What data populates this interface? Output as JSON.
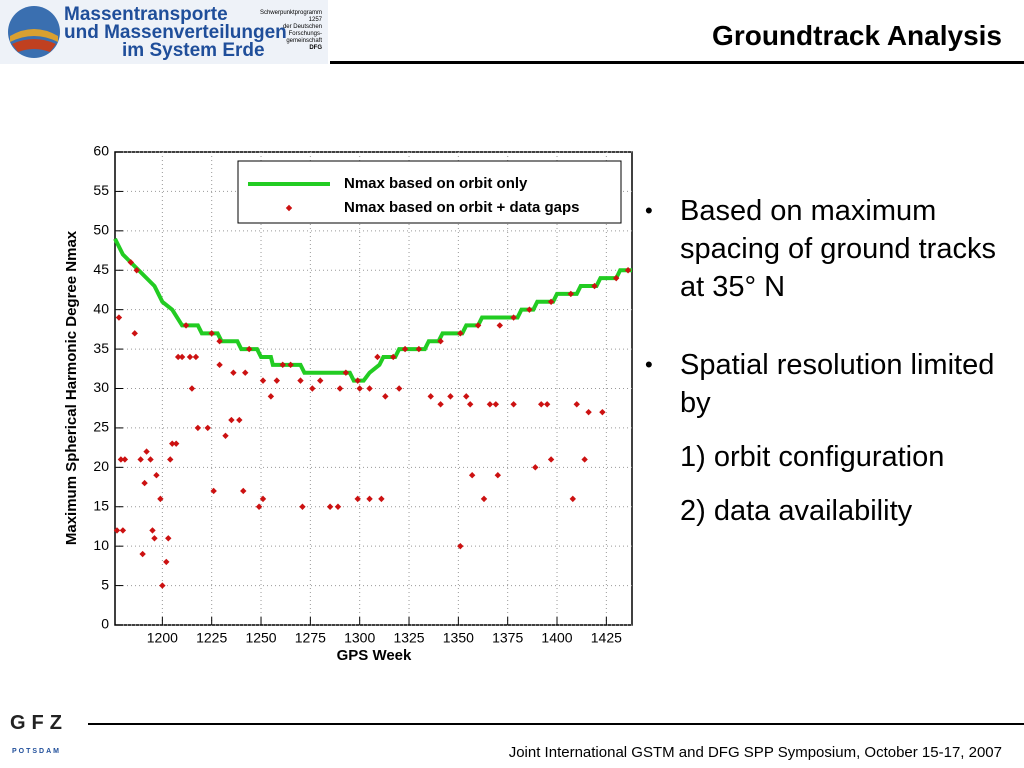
{
  "header": {
    "logo": [
      "Massentransporte",
      "und Massenverteilungen",
      "im System Erde"
    ],
    "logo_note": [
      "Schwerpunktprogramm 1257",
      "der Deutschen",
      "Forschungs-",
      "gemeinschaft",
      "DFG"
    ],
    "title": "Groundtrack Analysis"
  },
  "chart_data": {
    "type": "scatter",
    "x_label": "GPS Week",
    "y_label": "Maximum Spherical Harmonic Degree Nmax",
    "xlim": [
      1176,
      1438
    ],
    "ylim": [
      0,
      60
    ],
    "xticks": [
      1200,
      1225,
      1250,
      1275,
      1300,
      1325,
      1350,
      1375,
      1400,
      1425
    ],
    "yticks": [
      0,
      5,
      10,
      15,
      20,
      25,
      30,
      35,
      40,
      45,
      50,
      55,
      60
    ],
    "grid": true,
    "legend": "top-right",
    "series": [
      {
        "name": "Nmax based on orbit only",
        "color": "#22cc22",
        "mode": "line",
        "x": [
          1176,
          1180,
          1184,
          1188,
          1192,
          1196,
          1200,
          1205,
          1210,
          1218,
          1220,
          1228,
          1230,
          1238,
          1240,
          1248,
          1250,
          1255,
          1256,
          1270,
          1272,
          1295,
          1297,
          1302,
          1305,
          1310,
          1312,
          1318,
          1320,
          1333,
          1335,
          1340,
          1342,
          1352,
          1354,
          1360,
          1362,
          1370,
          1372,
          1380,
          1382,
          1388,
          1390,
          1398,
          1400,
          1410,
          1412,
          1420,
          1422,
          1430,
          1432,
          1438
        ],
        "values": [
          49,
          47,
          46,
          45,
          44,
          43,
          41,
          40,
          38,
          38,
          37,
          37,
          36,
          36,
          35,
          35,
          34,
          34,
          33,
          33,
          32,
          32,
          31,
          31,
          32,
          33,
          34,
          34,
          35,
          35,
          36,
          36,
          37,
          37,
          38,
          38,
          39,
          39,
          39,
          39,
          40,
          40,
          41,
          41,
          42,
          42,
          43,
          43,
          44,
          44,
          45,
          45
        ]
      },
      {
        "name": "Nmax based on orbit + data gaps",
        "color": "#cc1111",
        "mode": "markers",
        "x": [
          1178,
          1179,
          1177,
          1180,
          1181,
          1186,
          1184,
          1187,
          1189,
          1191,
          1190,
          1192,
          1195,
          1196,
          1197,
          1194,
          1199,
          1200,
          1202,
          1203,
          1204,
          1205,
          1207,
          1208,
          1210,
          1214,
          1217,
          1215,
          1212,
          1218,
          1223,
          1226,
          1225,
          1229,
          1229,
          1232,
          1236,
          1235,
          1239,
          1242,
          1241,
          1244,
          1249,
          1251,
          1251,
          1255,
          1258,
          1261,
          1265,
          1271,
          1270,
          1276,
          1280,
          1285,
          1289,
          1290,
          1293,
          1299,
          1299,
          1305,
          1311,
          1300,
          1305,
          1313,
          1320,
          1309,
          1317,
          1323,
          1330,
          1336,
          1341,
          1346,
          1351,
          1354,
          1356,
          1357,
          1363,
          1360,
          1366,
          1369,
          1370,
          1378,
          1378,
          1389,
          1392,
          1395,
          1397,
          1386,
          1397,
          1408,
          1410,
          1414,
          1416,
          1423,
          1407,
          1419,
          1430,
          1436,
          1341,
          1351,
          1371
        ],
        "values": [
          39,
          21,
          12,
          12,
          21,
          37,
          46,
          45,
          21,
          18,
          9,
          22,
          12,
          11,
          19,
          21,
          16,
          5,
          8,
          11,
          21,
          23,
          23,
          34,
          34,
          34,
          34,
          30,
          38,
          25,
          25,
          17,
          37,
          36,
          33,
          24,
          32,
          26,
          26,
          32,
          17,
          35,
          15,
          16,
          31,
          29,
          31,
          33,
          33,
          15,
          31,
          30,
          31,
          15,
          15,
          30,
          32,
          31,
          16,
          16,
          16,
          30,
          30,
          29,
          30,
          34,
          34,
          35,
          35,
          29,
          28,
          29,
          10,
          29,
          28,
          19,
          16,
          38,
          28,
          28,
          19,
          28,
          39,
          20,
          28,
          28,
          21,
          40,
          41,
          16,
          28,
          21,
          27,
          27,
          42,
          43,
          44,
          45,
          36,
          37,
          38
        ]
      }
    ]
  },
  "bullets": [
    {
      "text": "Based on maximum spacing of ground tracks at 35° N"
    },
    {
      "text": "Spatial resolution limited by",
      "items": [
        "1) orbit configuration",
        "2) data availability"
      ]
    }
  ],
  "footer": {
    "logo": "GFZ",
    "logo_sub": "POTSDAM",
    "text": "Joint International GSTM and DFG SPP Symposium, October 15-17, 2007"
  }
}
